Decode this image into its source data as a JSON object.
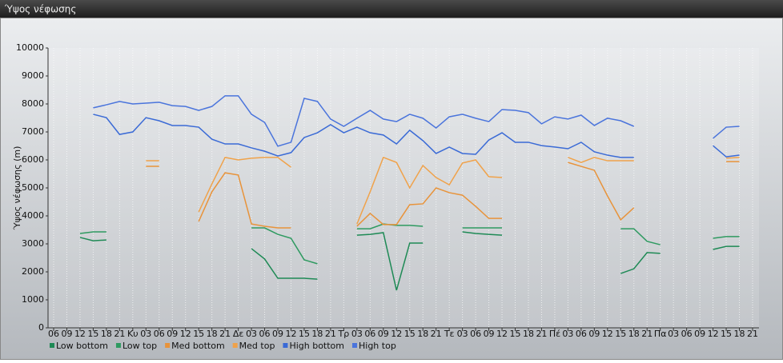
{
  "chart_data": {
    "type": "line",
    "title": "Ύψος νέφωσης",
    "y_label": "Ύψος νέφωσης (m)",
    "categories": [
      "06",
      "09",
      "12",
      "15",
      "18",
      "21",
      "Κυ",
      "03",
      "06",
      "09",
      "12",
      "15",
      "18",
      "21",
      "Δε",
      "03",
      "06",
      "09",
      "12",
      "15",
      "18",
      "21",
      "Τρ",
      "03",
      "06",
      "09",
      "12",
      "15",
      "18",
      "21",
      "Τε",
      "03",
      "06",
      "09",
      "12",
      "15",
      "18",
      "21",
      "Πέ",
      "03",
      "06",
      "09",
      "12",
      "15",
      "18",
      "21",
      "Πα",
      "03",
      "06",
      "09",
      "12",
      "15",
      "18",
      "21"
    ],
    "ylim": [
      0,
      10000
    ],
    "yticks": [
      0,
      1000,
      2000,
      3000,
      4000,
      5000,
      6000,
      7000,
      8000,
      9000,
      10000
    ],
    "grid": true,
    "series": [
      {
        "name": "Low bottom",
        "color": "#1e8a55",
        "values": [
          null,
          null,
          3230,
          3110,
          3140,
          null,
          null,
          null,
          null,
          null,
          null,
          null,
          null,
          null,
          null,
          2830,
          2460,
          1770,
          1770,
          1770,
          1740,
          null,
          null,
          3310,
          3340,
          3400,
          1340,
          3030,
          3030,
          null,
          null,
          3430,
          3370,
          3340,
          3310,
          null,
          null,
          null,
          null,
          null,
          null,
          null,
          null,
          1940,
          2110,
          2690,
          2660,
          null,
          null,
          null,
          2800,
          2910,
          2910,
          null
        ]
      },
      {
        "name": "Low top",
        "color": "#2e9a60",
        "values": [
          null,
          null,
          3370,
          3430,
          3430,
          null,
          null,
          null,
          null,
          null,
          null,
          null,
          null,
          null,
          null,
          3570,
          3570,
          3340,
          3200,
          2430,
          2290,
          null,
          null,
          3540,
          3540,
          3710,
          3660,
          3660,
          3630,
          null,
          null,
          3570,
          3570,
          3570,
          3570,
          null,
          null,
          null,
          null,
          null,
          null,
          null,
          null,
          3540,
          3540,
          3090,
          2970,
          null,
          null,
          null,
          3200,
          3260,
          3260,
          null
        ]
      },
      {
        "name": "Med bottom",
        "color": "#e8933a",
        "values": [
          null,
          null,
          null,
          null,
          null,
          null,
          null,
          5770,
          5770,
          null,
          null,
          3800,
          4860,
          5540,
          5460,
          3710,
          3630,
          3570,
          3570,
          null,
          null,
          null,
          null,
          3630,
          4090,
          3690,
          3690,
          4400,
          4430,
          5000,
          4830,
          4740,
          4340,
          3910,
          3910,
          null,
          null,
          null,
          null,
          5910,
          5770,
          5630,
          4710,
          3860,
          4290,
          null,
          null,
          null,
          null,
          null,
          null,
          5940,
          5940,
          null
        ]
      },
      {
        "name": "Med top",
        "color": "#f0a24a",
        "values": [
          null,
          null,
          null,
          null,
          null,
          null,
          null,
          5970,
          5970,
          null,
          null,
          4140,
          5140,
          6090,
          6000,
          6060,
          6090,
          6090,
          5740,
          null,
          null,
          null,
          null,
          3710,
          4860,
          6090,
          5910,
          5000,
          5800,
          5370,
          5110,
          5890,
          6000,
          5400,
          5370,
          null,
          null,
          null,
          null,
          6090,
          5910,
          6090,
          5970,
          5970,
          5970,
          null,
          null,
          null,
          null,
          null,
          null,
          6060,
          6090,
          null
        ]
      },
      {
        "name": "High bottom",
        "color": "#3a6ad6",
        "values": [
          null,
          null,
          null,
          7630,
          7510,
          6910,
          7000,
          7510,
          7400,
          7230,
          7230,
          7170,
          6740,
          6570,
          6570,
          6430,
          6310,
          6140,
          6260,
          6800,
          6970,
          7260,
          6970,
          7170,
          6970,
          6890,
          6570,
          7060,
          6690,
          6230,
          6460,
          6230,
          6200,
          6710,
          6970,
          6630,
          6630,
          6510,
          6460,
          6400,
          6630,
          6290,
          6170,
          6090,
          6090,
          null,
          null,
          null,
          null,
          null,
          6510,
          6110,
          6170,
          null
        ]
      },
      {
        "name": "High top",
        "color": "#4a74dc",
        "values": [
          null,
          null,
          null,
          7860,
          7970,
          8090,
          8000,
          8030,
          8060,
          7940,
          7910,
          7770,
          7910,
          8290,
          8290,
          7630,
          7340,
          6490,
          6630,
          8200,
          8090,
          7460,
          7200,
          7490,
          7770,
          7460,
          7370,
          7630,
          7490,
          7140,
          7540,
          7630,
          7490,
          7370,
          7800,
          7770,
          7690,
          7290,
          7540,
          7460,
          7600,
          7230,
          7490,
          7400,
          7200,
          null,
          null,
          null,
          null,
          null,
          6770,
          7170,
          7200,
          null
        ]
      }
    ]
  }
}
